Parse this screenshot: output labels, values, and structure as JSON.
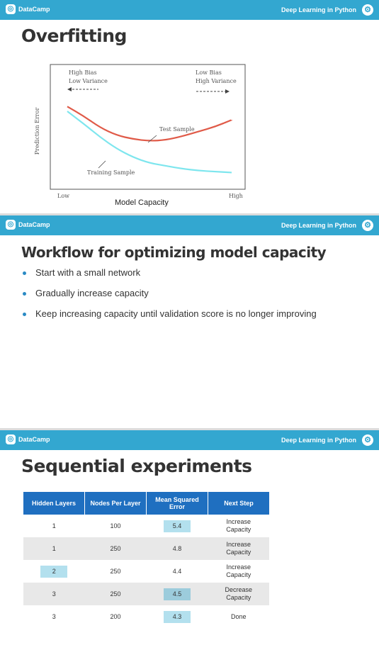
{
  "brand": "DataCamp",
  "course": "Deep Learning in Python",
  "slide1": {
    "title": "Overfitting",
    "caption": "Model Capacity",
    "chart_data": {
      "type": "line",
      "title": "",
      "xlabel": "Model Capacity",
      "ylabel": "Prediction Error",
      "x_tick_labels": [
        "Low",
        "High"
      ],
      "annotations": [
        "High Bias",
        "Low Variance",
        "Low Bias",
        "High Variance",
        "Test Sample",
        "Training Sample"
      ],
      "x": [
        0,
        0.1,
        0.2,
        0.3,
        0.4,
        0.5,
        0.6,
        0.7,
        0.8,
        0.9,
        1
      ],
      "series": [
        {
          "name": "Test Sample",
          "color": "#e05a48",
          "values": [
            0.82,
            0.72,
            0.6,
            0.52,
            0.48,
            0.46,
            0.47,
            0.51,
            0.56,
            0.61,
            0.68
          ]
        },
        {
          "name": "Training Sample",
          "color": "#7ee6ee",
          "values": [
            0.77,
            0.64,
            0.5,
            0.38,
            0.29,
            0.23,
            0.2,
            0.17,
            0.15,
            0.14,
            0.13
          ]
        }
      ]
    }
  },
  "slide2": {
    "title": "Workflow for optimizing model capacity",
    "bullets": [
      "Start with a small network",
      "Gradually increase capacity",
      "Keep increasing capacity until validation score is no longer improving"
    ]
  },
  "slide3": {
    "title": "Sequential experiments",
    "headers": [
      "Hidden Layers",
      "Nodes Per Layer",
      "Mean Squared Error",
      "Next Step"
    ],
    "rows": [
      [
        "1",
        "100",
        "5.4",
        "Increase Capacity"
      ],
      [
        "1",
        "250",
        "4.8",
        "Increase Capacity"
      ],
      [
        "2",
        "250",
        "4.4",
        "Increase Capacity"
      ],
      [
        "3",
        "250",
        "4.5",
        "Decrease Capacity"
      ],
      [
        "3",
        "200",
        "4.3",
        "Done"
      ]
    ]
  }
}
